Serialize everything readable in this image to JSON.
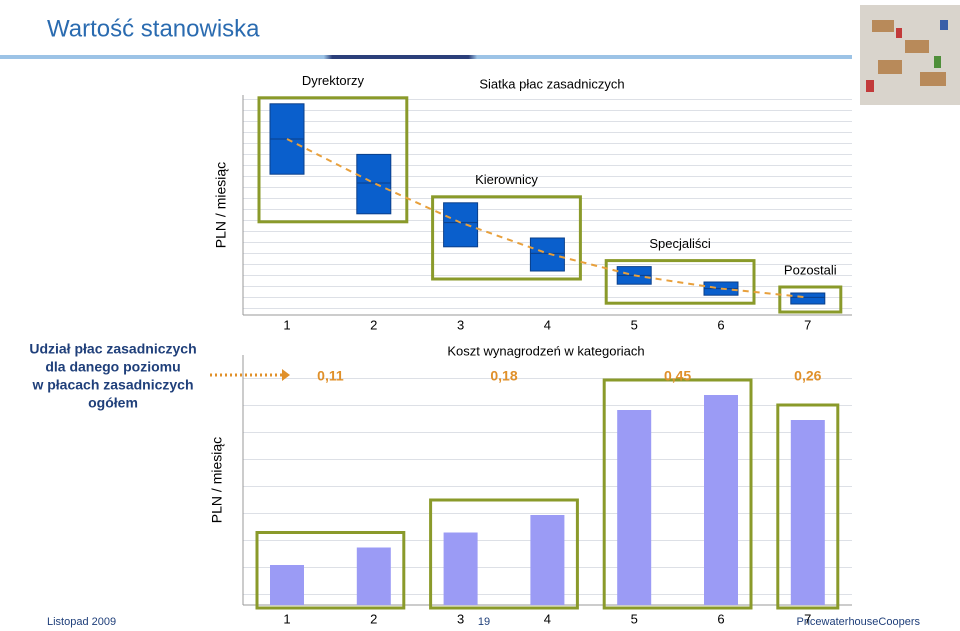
{
  "slide": {
    "title": "Wartość stanowiska",
    "date": "Listopad 2009",
    "page": "19",
    "company": "PricewaterhouseCoopers",
    "side_note": [
      "Udział płac zasadniczych",
      "dla danego poziomu",
      "w płacach zasadniczych",
      "ogółem"
    ]
  },
  "chart_data": [
    {
      "type": "box",
      "title": "Siatka płac zasadniczych",
      "y_label": "PLN / miesiąc",
      "categories": [
        "1",
        "2",
        "3",
        "4",
        "5",
        "6",
        "7"
      ],
      "low": [
        64,
        46,
        31,
        20,
        14,
        9,
        5
      ],
      "median": [
        80,
        60,
        42,
        28,
        18,
        12,
        8
      ],
      "high": [
        96,
        73,
        51,
        35,
        22,
        15,
        10
      ],
      "color": "#0a5fcc",
      "line_color": "#e8a03c",
      "group_color": "#8a9a2a",
      "ylim": [
        0,
        100
      ],
      "groups": [
        {
          "name": "Dyrektorzy",
          "categories": [
            0,
            1
          ]
        },
        {
          "name": "Kierownicy",
          "categories": [
            2,
            3
          ]
        },
        {
          "name": "Specjaliści",
          "categories": [
            4,
            5
          ]
        },
        {
          "name": "Pozostali",
          "categories": [
            6
          ]
        }
      ]
    },
    {
      "type": "bar",
      "title": "Koszt wynagrodzeń w kategoriach",
      "y_label": "PLN / miesiąc",
      "categories": [
        "1",
        "2",
        "3",
        "4",
        "5",
        "6",
        "7"
      ],
      "values": [
        16,
        23,
        29,
        36,
        78,
        84,
        74
      ],
      "color": "#9b9bf5",
      "group_color": "#8a9a2a",
      "ylim": [
        0,
        100
      ],
      "groups": [
        {
          "categories": [
            0,
            1
          ]
        },
        {
          "categories": [
            2,
            3
          ]
        },
        {
          "categories": [
            4,
            5
          ]
        },
        {
          "categories": [
            6
          ]
        }
      ],
      "group_shares": {
        "values": [
          0.11,
          0.18,
          0.45,
          0.26
        ],
        "value_labels": [
          "0,11",
          "0,18",
          "0,45",
          "0,26"
        ],
        "color": "#e0902a"
      }
    }
  ]
}
